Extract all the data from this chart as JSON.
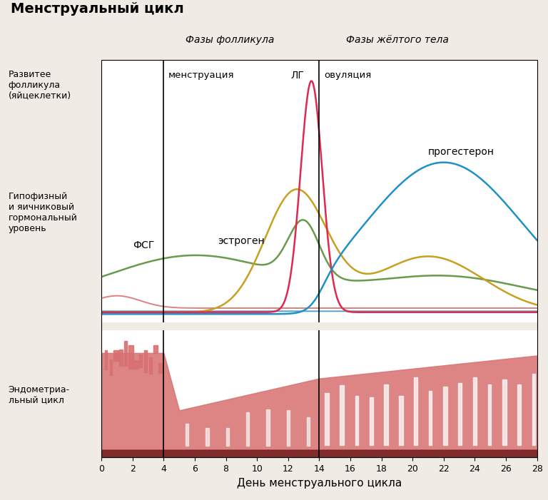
{
  "title": "Менструальный цикл",
  "xlabel": "День менструального цикла",
  "phase1_label": "Фазы фолликула",
  "phase2_label": "Фазы жёлтого тела",
  "menstruation_label": "менструация",
  "ovulation_label": "овуляция",
  "follicle_label": "Развитее\nфолликула\n(яйцеклетки)",
  "hormone_label": "Гипофизный\nи яичниковый\nгормональный\nуровень",
  "endometrial_label": "Эндометриа-\nльный цикл",
  "fsg_label": "ФСГ",
  "estrogen_label": "эстроген",
  "lg_label": "ЛГ",
  "progesterone_label": "прогестерон",
  "bg_color": "#f0ebe4",
  "plot_bg_color": "#ffffff",
  "line_fsg": "#6a9a4c",
  "line_estrogen": "#c8a020",
  "line_lg": "#e02850",
  "line_prog": "#2090c8",
  "line_red_base": "#e08080",
  "line_blue_base": "#50a0d0",
  "endo_light": "#d87070",
  "endo_dark": "#7a2020",
  "xticks": [
    0,
    2,
    4,
    6,
    8,
    10,
    12,
    14,
    16,
    18,
    20,
    22,
    24,
    26,
    28
  ]
}
